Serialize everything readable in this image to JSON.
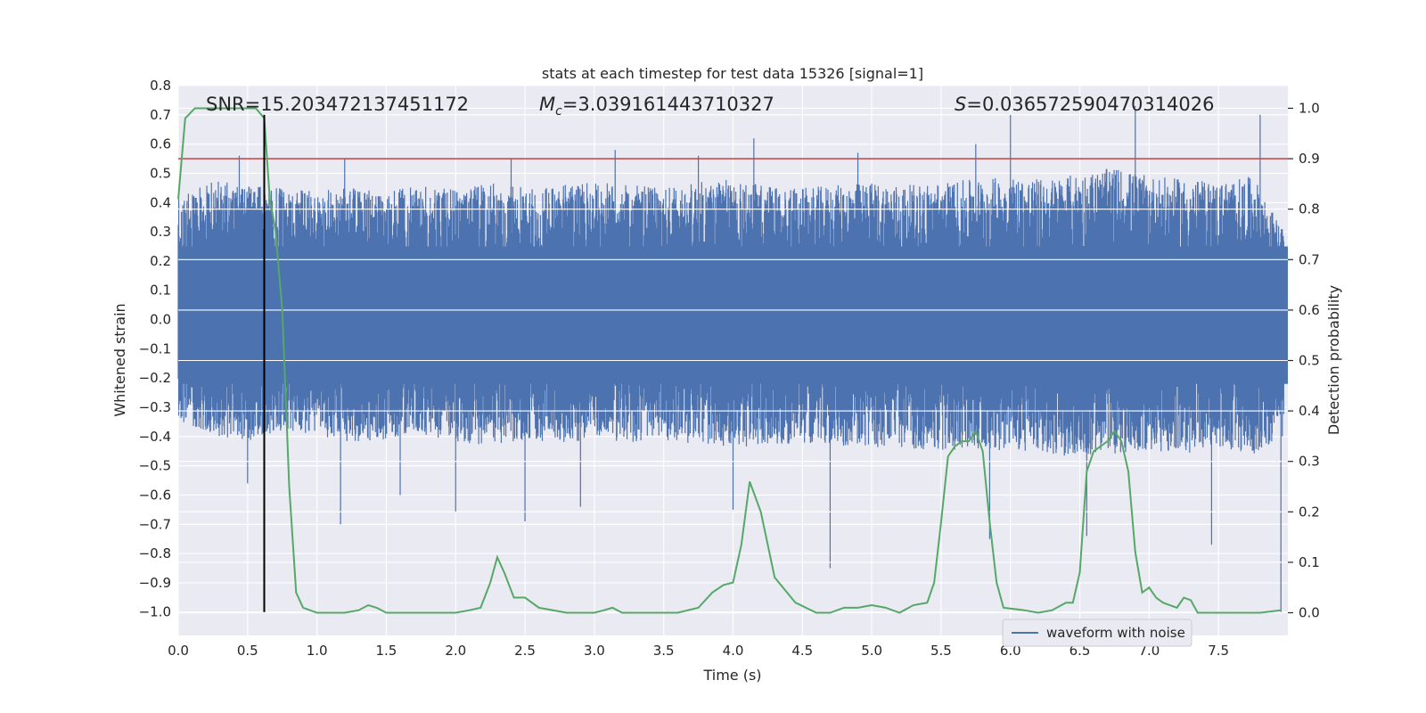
{
  "chart_data": {
    "type": "line",
    "title": "stats at each timestep for test data 15326 [signal=1]",
    "xlabel": "Time (s)",
    "ylabel_left": "Whitened strain",
    "ylabel_right": "Detection probability",
    "xlim": [
      0.0,
      8.0
    ],
    "ylim_left": [
      -1.08,
      0.8
    ],
    "ylim_right": [
      -0.045,
      1.045
    ],
    "x_ticks": [
      0.0,
      0.5,
      1.0,
      1.5,
      2.0,
      2.5,
      3.0,
      3.5,
      4.0,
      4.5,
      5.0,
      5.5,
      6.0,
      6.5,
      7.0,
      7.5
    ],
    "x_tick_labels": [
      "0.0",
      "0.5",
      "1.0",
      "1.5",
      "2.0",
      "2.5",
      "3.0",
      "3.5",
      "4.0",
      "4.5",
      "5.0",
      "5.5",
      "6.0",
      "6.5",
      "7.0",
      "7.5"
    ],
    "y_left_ticks": [
      0.8,
      0.7,
      0.6,
      0.5,
      0.4,
      0.3,
      0.2,
      0.1,
      0.0,
      -0.1,
      -0.2,
      -0.3,
      -0.4,
      -0.5,
      -0.6,
      -0.7,
      -0.8,
      -0.9,
      -1.0
    ],
    "y_left_tick_labels": [
      "0.8",
      "0.7",
      "0.6",
      "0.5",
      "0.4",
      "0.3",
      "0.2",
      "0.1",
      "0.0",
      "−0.1",
      "−0.2",
      "−0.3",
      "−0.4",
      "−0.5",
      "−0.6",
      "−0.7",
      "−0.8",
      "−0.9",
      "−1.0"
    ],
    "y_right_ticks": [
      1.0,
      0.9,
      0.8,
      0.7,
      0.6,
      0.5,
      0.4,
      0.3,
      0.2,
      0.1,
      0.0
    ],
    "y_right_tick_labels": [
      "1.0",
      "0.9",
      "0.8",
      "0.7",
      "0.6",
      "0.5",
      "0.4",
      "0.3",
      "0.2",
      "0.1",
      "0.0"
    ],
    "grid": true,
    "legend": {
      "placement": "lower-right",
      "entries": [
        "waveform with noise"
      ]
    },
    "annotations": {
      "snr": "SNR=15.203472137451172",
      "mc_symbol": "M",
      "mc_sub": "c",
      "mc_value": "=3.039161443710327",
      "s_symbol": "S",
      "s_value": "=0.036572590470314026"
    },
    "threshold": {
      "axis": "right",
      "value": 0.9,
      "color": "#c44e52"
    },
    "marker_time": 0.62,
    "colors": {
      "waveform": "#4c72b0",
      "probability": "#55a868",
      "threshold": "#c44e52",
      "marker": "#000000",
      "background": "#eaeaf2",
      "grid": "#ffffff"
    },
    "waveform_envelope": {
      "x": [
        0.0,
        0.25,
        0.5,
        0.75,
        1.0,
        1.25,
        1.5,
        1.75,
        2.0,
        2.25,
        2.5,
        2.75,
        3.0,
        3.25,
        3.5,
        3.75,
        4.0,
        4.25,
        4.5,
        4.75,
        5.0,
        5.25,
        5.5,
        5.75,
        6.0,
        6.25,
        6.5,
        6.75,
        7.0,
        7.25,
        7.5,
        7.75,
        7.97
      ],
      "upper": [
        0.42,
        0.48,
        0.46,
        0.45,
        0.44,
        0.45,
        0.44,
        0.46,
        0.45,
        0.47,
        0.45,
        0.46,
        0.47,
        0.46,
        0.45,
        0.47,
        0.48,
        0.46,
        0.45,
        0.46,
        0.47,
        0.46,
        0.47,
        0.48,
        0.49,
        0.48,
        0.5,
        0.52,
        0.49,
        0.48,
        0.47,
        0.49,
        0.3
      ],
      "lower": [
        -0.35,
        -0.4,
        -0.42,
        -0.38,
        -0.4,
        -0.42,
        -0.41,
        -0.4,
        -0.42,
        -0.43,
        -0.41,
        -0.42,
        -0.41,
        -0.42,
        -0.41,
        -0.43,
        -0.44,
        -0.43,
        -0.42,
        -0.43,
        -0.44,
        -0.44,
        -0.45,
        -0.44,
        -0.45,
        -0.46,
        -0.47,
        -0.46,
        -0.45,
        -0.46,
        -0.44,
        -0.46,
        -0.4
      ],
      "peaks_up": [
        [
          0.44,
          0.56
        ],
        [
          1.2,
          0.55
        ],
        [
          2.4,
          0.55
        ],
        [
          3.15,
          0.58
        ],
        [
          3.75,
          0.56
        ],
        [
          4.15,
          0.62
        ],
        [
          4.9,
          0.57
        ],
        [
          5.75,
          0.6
        ],
        [
          6.0,
          0.7
        ],
        [
          6.9,
          0.73
        ],
        [
          7.8,
          0.7
        ]
      ],
      "peaks_down": [
        [
          0.5,
          -0.56
        ],
        [
          1.17,
          -0.7
        ],
        [
          1.6,
          -0.6
        ],
        [
          2.0,
          -0.66
        ],
        [
          2.5,
          -0.69
        ],
        [
          2.9,
          -0.64
        ],
        [
          4.0,
          -0.65
        ],
        [
          4.7,
          -0.85
        ],
        [
          5.85,
          -0.75
        ],
        [
          6.55,
          -0.74
        ],
        [
          7.45,
          -0.77
        ],
        [
          7.95,
          -1.0
        ]
      ]
    },
    "probability": {
      "x": [
        0.0,
        0.05,
        0.12,
        0.2,
        0.3,
        0.4,
        0.5,
        0.56,
        0.62,
        0.66,
        0.7,
        0.75,
        0.8,
        0.85,
        0.9,
        1.0,
        1.2,
        1.3,
        1.37,
        1.43,
        1.5,
        1.6,
        1.75,
        1.9,
        2.0,
        2.1,
        2.18,
        2.25,
        2.3,
        2.35,
        2.42,
        2.5,
        2.6,
        2.8,
        3.0,
        3.07,
        3.13,
        3.2,
        3.3,
        3.4,
        3.5,
        3.6,
        3.75,
        3.85,
        3.93,
        4.0,
        4.06,
        4.12,
        4.2,
        4.3,
        4.45,
        4.6,
        4.7,
        4.8,
        4.9,
        5.0,
        5.1,
        5.2,
        5.3,
        5.4,
        5.45,
        5.5,
        5.55,
        5.6,
        5.65,
        5.7,
        5.75,
        5.8,
        5.85,
        5.9,
        5.95,
        6.1,
        6.2,
        6.3,
        6.4,
        6.45,
        6.5,
        6.55,
        6.6,
        6.65,
        6.7,
        6.75,
        6.8,
        6.85,
        6.9,
        6.95,
        7.0,
        7.05,
        7.1,
        7.15,
        7.2,
        7.25,
        7.3,
        7.35,
        7.45,
        7.6,
        7.8,
        7.95
      ],
      "y": [
        0.82,
        0.98,
        1.0,
        1.0,
        1.0,
        1.0,
        1.0,
        1.0,
        0.98,
        0.82,
        0.76,
        0.6,
        0.25,
        0.04,
        0.01,
        0.0,
        0.0,
        0.005,
        0.015,
        0.01,
        0.0,
        0.0,
        0.0,
        0.0,
        0.0,
        0.005,
        0.01,
        0.06,
        0.11,
        0.08,
        0.03,
        0.03,
        0.01,
        0.0,
        0.0,
        0.005,
        0.01,
        0.0,
        0.0,
        0.0,
        0.0,
        0.0,
        0.01,
        0.04,
        0.055,
        0.06,
        0.135,
        0.26,
        0.2,
        0.07,
        0.02,
        0.0,
        0.0,
        0.01,
        0.01,
        0.015,
        0.01,
        0.0,
        0.015,
        0.02,
        0.06,
        0.18,
        0.31,
        0.33,
        0.34,
        0.34,
        0.36,
        0.32,
        0.18,
        0.06,
        0.01,
        0.005,
        0.0,
        0.005,
        0.02,
        0.02,
        0.08,
        0.28,
        0.32,
        0.33,
        0.34,
        0.36,
        0.34,
        0.28,
        0.12,
        0.04,
        0.05,
        0.03,
        0.02,
        0.015,
        0.01,
        0.03,
        0.025,
        0.0,
        0.0,
        0.0,
        0.0,
        0.005
      ]
    }
  }
}
